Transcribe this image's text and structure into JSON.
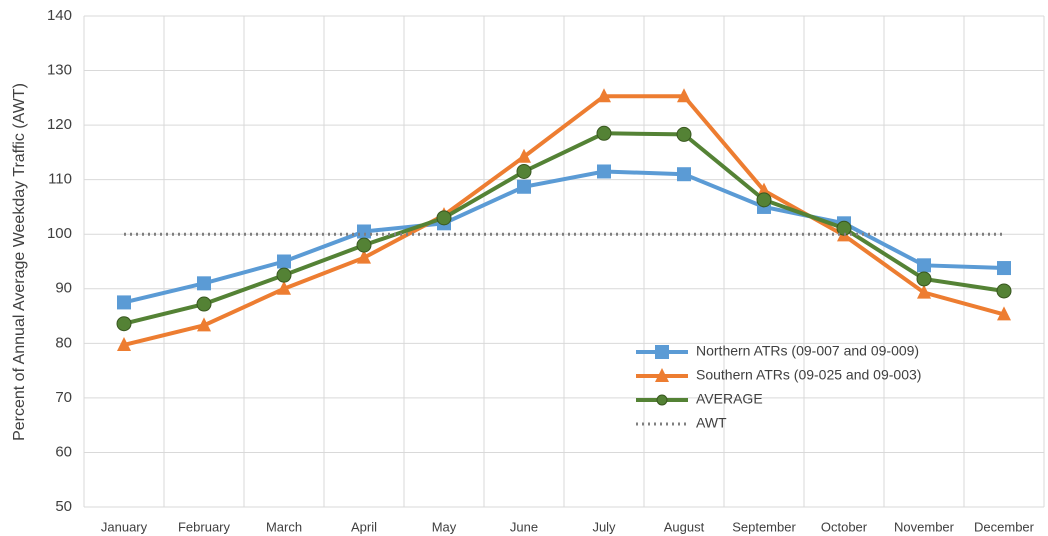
{
  "chart_data": {
    "type": "line",
    "y_label": "Percent of Annual Average Weekday Traffic (AWT)",
    "categories": [
      "January",
      "February",
      "March",
      "April",
      "May",
      "June",
      "July",
      "August",
      "September",
      "October",
      "November",
      "December"
    ],
    "series": [
      {
        "name": "Northern ATRs (09-007 and 09-009)",
        "color": "#5b9bd5",
        "marker": "square",
        "dash": "solid",
        "values": [
          87.5,
          91,
          95,
          100.5,
          102,
          108.7,
          111.5,
          111,
          105,
          102,
          94.3,
          93.8
        ]
      },
      {
        "name": "Southern ATRs (09-025 and 09-003)",
        "color": "#ed7d31",
        "marker": "triangle",
        "dash": "solid",
        "values": [
          79.7,
          83.3,
          90,
          95.7,
          103.5,
          114.2,
          125.3,
          125.3,
          108,
          99.8,
          89.3,
          85.3
        ]
      },
      {
        "name": "AVERAGE",
        "color": "#548235",
        "marker": "circle",
        "dash": "solid",
        "values": [
          83.6,
          87.2,
          92.5,
          98,
          103,
          111.5,
          118.5,
          118.3,
          106.3,
          101.1,
          91.8,
          89.6
        ]
      },
      {
        "name": "AWT",
        "color": "#7f7f7f",
        "marker": "none",
        "dash": "dotted",
        "values": [
          100,
          100,
          100,
          100,
          100,
          100,
          100,
          100,
          100,
          100,
          100,
          100
        ]
      }
    ],
    "ylim": [
      50,
      140
    ],
    "yticks": [
      50,
      60,
      70,
      80,
      90,
      100,
      110,
      120,
      130,
      140
    ],
    "grid": true,
    "legend": "lower right"
  }
}
